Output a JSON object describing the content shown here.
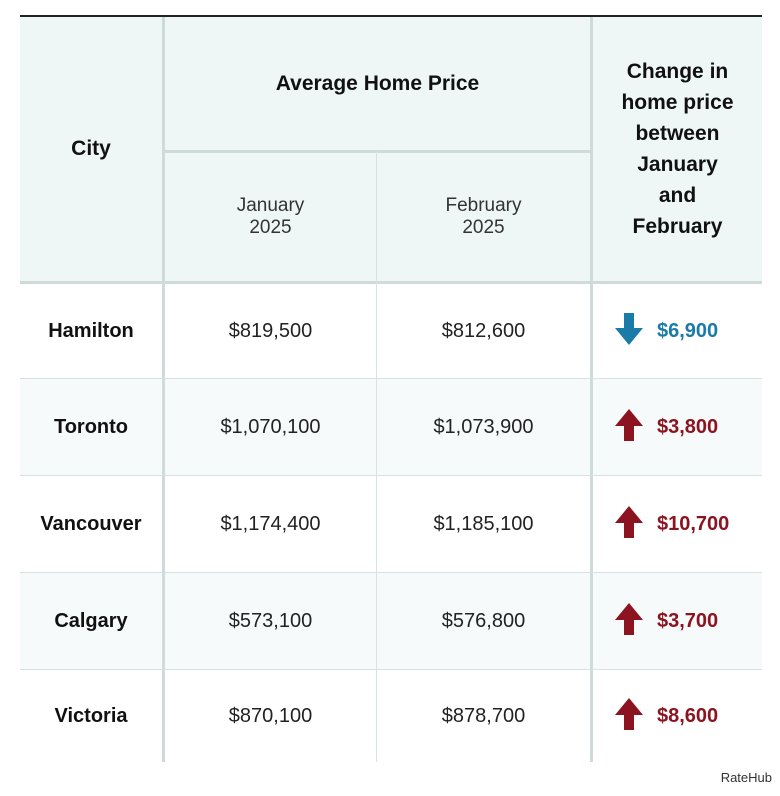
{
  "table": {
    "header": {
      "city": "City",
      "avg_price": "Average Home Price",
      "jan": "January\n2025",
      "feb": "February\n2025",
      "change": "Change in\nhome price\nbetween\nJanuary\nand\nFebruary"
    },
    "rows": [
      {
        "city": "Hamilton",
        "jan": "$819,500",
        "feb": "$812,600",
        "direction": "down",
        "change": "$6,900"
      },
      {
        "city": "Toronto",
        "jan": "$1,070,100",
        "feb": "$1,073,900",
        "direction": "up",
        "change": "$3,800"
      },
      {
        "city": "Vancouver",
        "jan": "$1,174,400",
        "feb": "$1,185,100",
        "direction": "up",
        "change": "$10,700"
      },
      {
        "city": "Calgary",
        "jan": "$573,100",
        "feb": "$576,800",
        "direction": "up",
        "change": "$3,700"
      },
      {
        "city": "Victoria",
        "jan": "$870,100",
        "feb": "$878,700",
        "direction": "up",
        "change": "$8,600"
      }
    ]
  },
  "colors": {
    "down": "#1a7aa8",
    "up": "#8b1420",
    "header_bg": "#eef6f6"
  },
  "icons": {
    "down": "arrow-down-icon",
    "up": "arrow-up-icon"
  },
  "footer": {
    "source": "RateHub"
  }
}
